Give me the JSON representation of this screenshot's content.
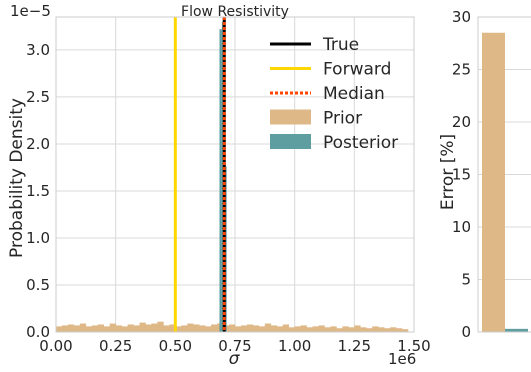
{
  "chart_data": [
    {
      "type": "histogram",
      "title": "Flow Resistivity",
      "xlabel": "σ",
      "ylabel": "Probability Density",
      "x_offset_label": "1e6",
      "y_offset_label": "1e−5",
      "xlim": [
        0.0,
        1.5
      ],
      "ylim": [
        0.0,
        3.35
      ],
      "xticks": [
        "0.00",
        "0.25",
        "0.50",
        "0.75",
        "1.00",
        "1.25",
        "1.50"
      ],
      "yticks": [
        "0.0",
        "0.5",
        "1.0",
        "1.5",
        "2.0",
        "2.5",
        "3.0"
      ],
      "grid": true,
      "legend_position": "upper-right",
      "legend": [
        {
          "label": "True",
          "style": "line",
          "color": "#000000"
        },
        {
          "label": "Forward",
          "style": "line",
          "color": "#ffd700"
        },
        {
          "label": "Median",
          "style": "dotted",
          "color": "#ff4500"
        },
        {
          "label": "Prior",
          "style": "patch",
          "color": "#deb887"
        },
        {
          "label": "Posterior",
          "style": "patch",
          "color": "#5f9ea0"
        }
      ],
      "vlines": {
        "True": 0.705,
        "Forward": 0.5,
        "Median": 0.705
      },
      "prior_bin_width": 0.025,
      "prior_bins_x": [
        0.0,
        0.025,
        0.05,
        0.075,
        0.1,
        0.125,
        0.15,
        0.175,
        0.2,
        0.225,
        0.25,
        0.275,
        0.3,
        0.325,
        0.35,
        0.375,
        0.4,
        0.425,
        0.45,
        0.475,
        0.5,
        0.525,
        0.55,
        0.575,
        0.6,
        0.625,
        0.65,
        0.675,
        0.7,
        0.725,
        0.75,
        0.775,
        0.8,
        0.825,
        0.85,
        0.875,
        0.9,
        0.925,
        0.95,
        0.975,
        1.0,
        1.025,
        1.05,
        1.075,
        1.1,
        1.125,
        1.15,
        1.175,
        1.2,
        1.225,
        1.25,
        1.275,
        1.3,
        1.325,
        1.35,
        1.375,
        1.4,
        1.425,
        1.45
      ],
      "prior_values": [
        0.06,
        0.07,
        0.08,
        0.07,
        0.09,
        0.06,
        0.07,
        0.08,
        0.06,
        0.09,
        0.07,
        0.06,
        0.08,
        0.07,
        0.1,
        0.08,
        0.09,
        0.11,
        0.07,
        0.08,
        0.06,
        0.07,
        0.09,
        0.08,
        0.07,
        0.06,
        0.08,
        0.09,
        0.07,
        0.08,
        0.06,
        0.07,
        0.08,
        0.07,
        0.06,
        0.09,
        0.07,
        0.06,
        0.08,
        0.05,
        0.06,
        0.07,
        0.05,
        0.06,
        0.07,
        0.05,
        0.06,
        0.04,
        0.06,
        0.05,
        0.07,
        0.05,
        0.04,
        0.06,
        0.05,
        0.04,
        0.05,
        0.04,
        0.03
      ],
      "posterior_bins_x": [
        0.685,
        0.695,
        0.705
      ],
      "posterior_bin_width": 0.01,
      "posterior_values": [
        3.22,
        3.3,
        1.76
      ]
    },
    {
      "type": "bar",
      "ylabel": "Error [%]",
      "ylim": [
        0,
        30
      ],
      "yticks": [
        "0",
        "5",
        "10",
        "15",
        "20",
        "25",
        "30"
      ],
      "categories": [
        "Prior",
        "Posterior"
      ],
      "values": [
        28.5,
        0.3
      ],
      "colors": [
        "#deb887",
        "#5f9ea0"
      ]
    }
  ]
}
